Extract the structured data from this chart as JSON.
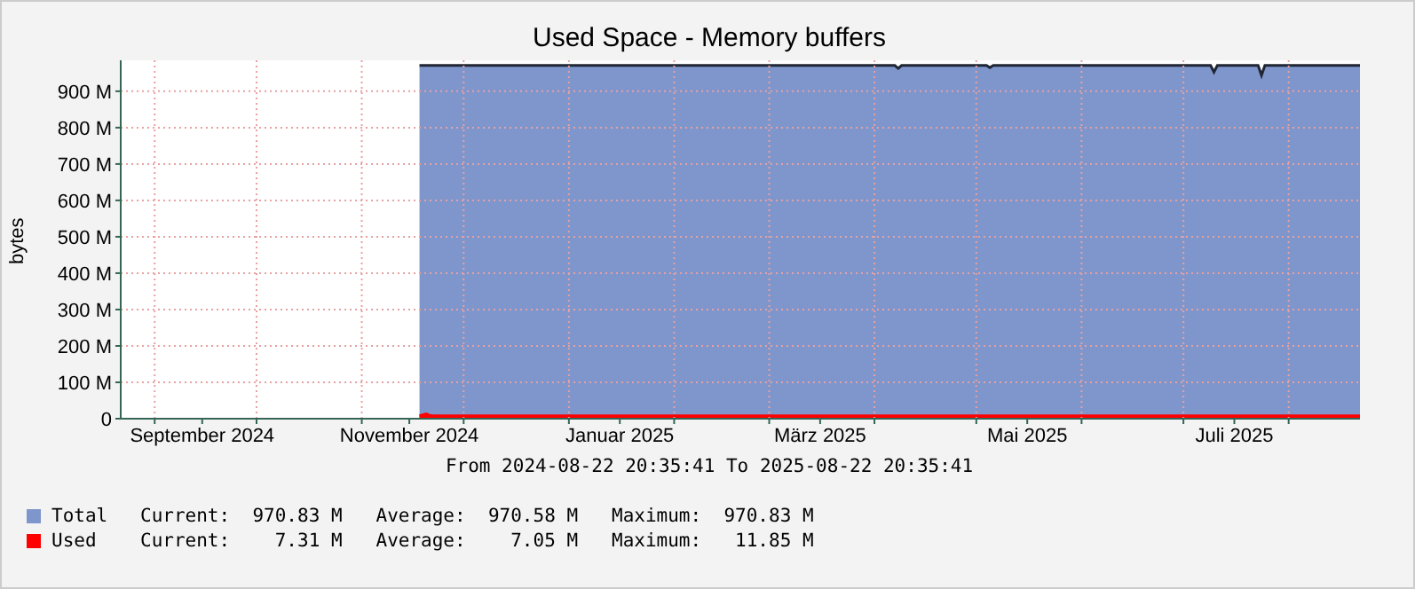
{
  "chart_data": {
    "type": "area",
    "title": "Used Space - Memory buffers",
    "ylabel": "bytes",
    "annotations": [
      "From 2024-08-22 20:35:41 To 2025-08-22 20:35:41",
      "Current:  970.83 M   Average:  970.58 M   Maximum:  970.83 M",
      "Current:    7.31 M   Average:    7.05 M   Maximum:   11.85 M"
    ],
    "x": [
      "2024-11-18",
      "2024-11-20",
      "2024-11-21",
      "2024-11-22",
      "2024-12-20",
      "2025-02-10",
      "2025-04-07",
      "2025-04-08",
      "2025-04-09",
      "2025-05-04",
      "2025-05-05",
      "2025-05-06",
      "2025-07-09",
      "2025-07-10",
      "2025-07-11",
      "2025-07-23",
      "2025-07-24",
      "2025-07-25",
      "2025-08-22"
    ],
    "series": [
      {
        "name": "Total",
        "color": "#7f96cc",
        "values": [
          971,
          971,
          971,
          971,
          971,
          971,
          971,
          963,
          971,
          971,
          965,
          971,
          971,
          953,
          971,
          971,
          944,
          971,
          971
        ]
      },
      {
        "name": "Used",
        "color": "#ff0000",
        "values": [
          7,
          12,
          8,
          7,
          7,
          7,
          7,
          7,
          7,
          7,
          7,
          7,
          7,
          7,
          7,
          7,
          7,
          7,
          7
        ]
      }
    ],
    "xlim": [
      "2024-08-22",
      "2025-08-22"
    ],
    "xticks": [
      {
        "value": "2024-09-01",
        "label": null
      },
      {
        "value": "2024-09-15",
        "label": "September 2024"
      },
      {
        "value": "2024-10-01",
        "label": null
      },
      {
        "value": "2024-11-01",
        "label": null
      },
      {
        "value": "2024-11-15",
        "label": "November 2024"
      },
      {
        "value": "2024-12-01",
        "label": null
      },
      {
        "value": "2025-01-01",
        "label": null
      },
      {
        "value": "2025-01-16",
        "label": "Januar 2025"
      },
      {
        "value": "2025-02-01",
        "label": null
      },
      {
        "value": "2025-03-01",
        "label": null
      },
      {
        "value": "2025-03-16",
        "label": "März 2025"
      },
      {
        "value": "2025-04-01",
        "label": null
      },
      {
        "value": "2025-05-01",
        "label": null
      },
      {
        "value": "2025-05-16",
        "label": "Mai 2025"
      },
      {
        "value": "2025-06-01",
        "label": null
      },
      {
        "value": "2025-07-01",
        "label": null
      },
      {
        "value": "2025-07-16",
        "label": "Juli 2025"
      },
      {
        "value": "2025-08-01",
        "label": null
      }
    ],
    "ylim": [
      0,
      985
    ],
    "yticks": [
      0,
      {
        "value": 100,
        "label": "100 M"
      },
      {
        "value": 200,
        "label": "200 M"
      },
      {
        "value": 300,
        "label": "300 M"
      },
      {
        "value": 400,
        "label": "400 M"
      },
      {
        "value": 500,
        "label": "500 M"
      },
      {
        "value": 600,
        "label": "600 M"
      },
      {
        "value": 700,
        "label": "700 M"
      },
      {
        "value": 800,
        "label": "800 M"
      },
      {
        "value": 900,
        "label": "900 M"
      }
    ],
    "grid": true,
    "legend": "bottom left"
  }
}
